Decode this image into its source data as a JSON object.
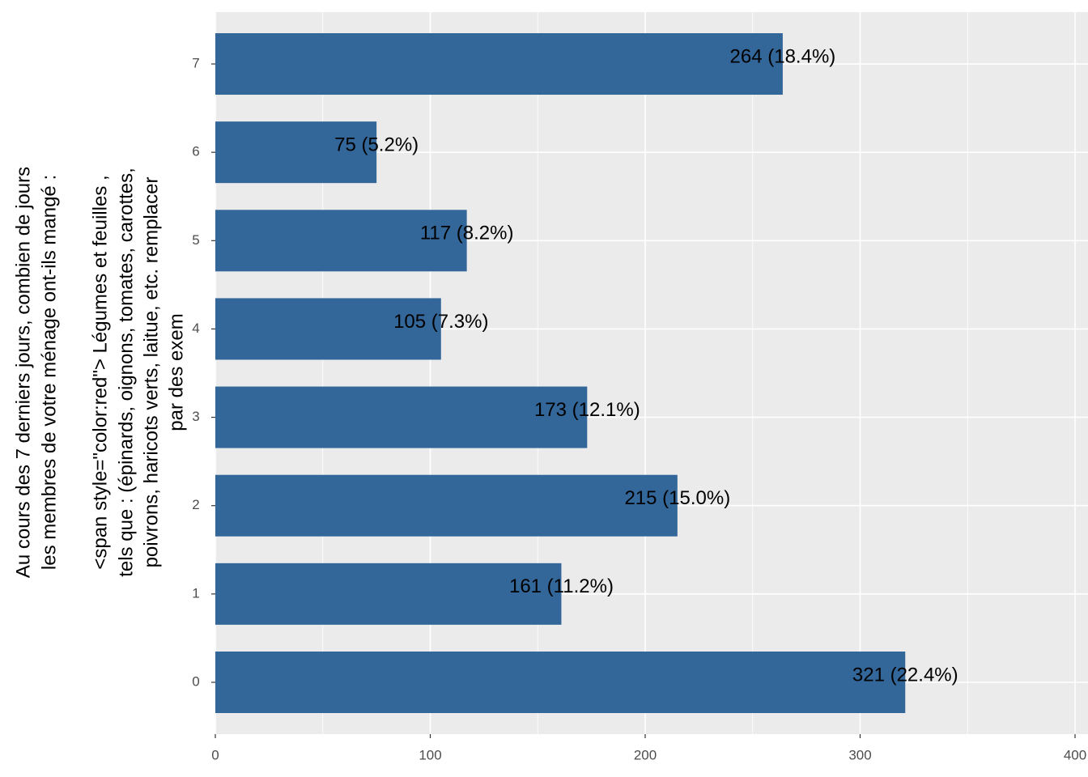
{
  "chart_data": {
    "type": "bar",
    "orientation": "horizontal",
    "y_label_lines": [
      "Au cours des 7 derniers jours, combien de jours",
      "les membres de votre ménage ont-ils mangé :",
      "<span style=\"color:red\"> Légumes et feuilles ,",
      "tels que : (épinards, oignons, tomates, carottes,",
      "poivrons, haricots verts, laitue, etc. remplacer",
      "par des exem"
    ],
    "categories": [
      "0",
      "1",
      "2",
      "3",
      "4",
      "5",
      "6",
      "7"
    ],
    "values": [
      321,
      161,
      215,
      173,
      105,
      117,
      75,
      264
    ],
    "value_labels": [
      "321 (22.4%)",
      "161 (11.2%)",
      "215 (15.0%)",
      "173 (12.1%)",
      "105 (7.3%)",
      "117 (8.2%)",
      "75 (5.2%)",
      "264 (18.4%)"
    ],
    "color": "#336699",
    "xlim": [
      0,
      400
    ],
    "xticks": [
      0,
      100,
      200,
      300,
      400
    ],
    "minor_xticks": [
      50,
      150,
      250,
      350
    ],
    "grid": true
  }
}
